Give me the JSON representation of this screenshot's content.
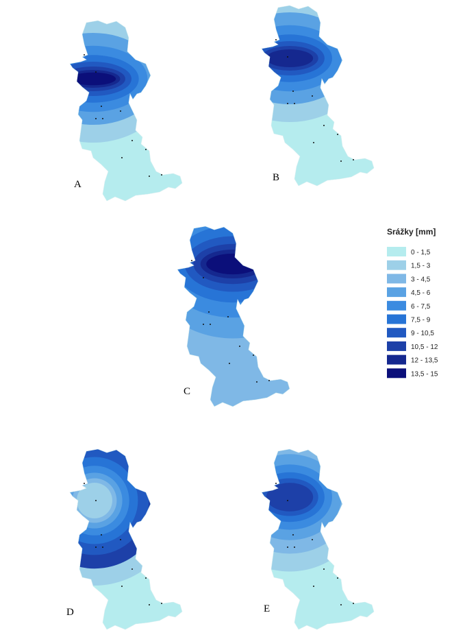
{
  "legend": {
    "title": "Srážky [mm]",
    "classes": [
      {
        "label": "0 - 1,5",
        "color": "#b5ecee"
      },
      {
        "label": "1,5 - 3",
        "color": "#9dd0e8"
      },
      {
        "label": "3 - 4,5",
        "color": "#7fb8e6"
      },
      {
        "label": "4,5 - 6",
        "color": "#5aa2e3"
      },
      {
        "label": "6 - 7,5",
        "color": "#3b8be0"
      },
      {
        "label": "7,5 - 9",
        "color": "#2774d6"
      },
      {
        "label": "9 - 10,5",
        "color": "#2159c1"
      },
      {
        "label": "10,5 - 12",
        "color": "#1d40a8"
      },
      {
        "label": "12 - 13,5",
        "color": "#15288f"
      },
      {
        "label": "13,5 - 15",
        "color": "#0b0f7a"
      }
    ]
  },
  "panels": [
    {
      "label": "A",
      "bands": [
        9,
        8,
        7,
        6,
        5,
        4,
        3,
        1,
        0
      ]
    },
    {
      "label": "B",
      "bands": [
        8,
        7,
        6,
        5,
        4,
        3,
        1,
        0
      ]
    },
    {
      "label": "C",
      "bands": [
        9,
        8,
        7,
        6,
        5,
        4,
        3,
        2
      ]
    },
    {
      "label": "D",
      "bands": [
        1,
        2,
        3,
        4,
        5,
        6,
        7,
        1,
        0
      ]
    },
    {
      "label": "E",
      "bands": [
        7,
        6,
        5,
        4,
        3,
        2,
        1,
        0
      ]
    }
  ]
}
